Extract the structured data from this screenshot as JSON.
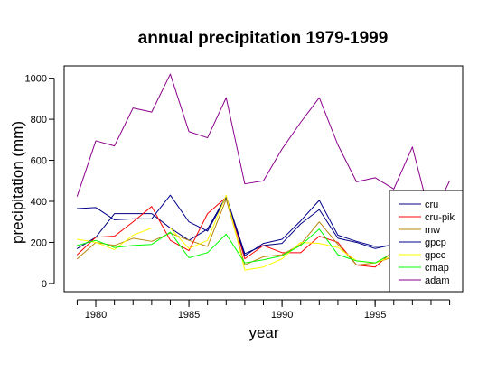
{
  "chart_data": {
    "type": "line",
    "title": "annual precipitation 1979-1999",
    "xlabel": "year",
    "ylabel": "precipitation (mm)",
    "x": [
      1979,
      1980,
      1981,
      1982,
      1983,
      1984,
      1985,
      1986,
      1987,
      1988,
      1989,
      1990,
      1991,
      1992,
      1993,
      1994,
      1995,
      1996,
      1997,
      1998,
      1999
    ],
    "xlim": [
      1978.3,
      1999.7
    ],
    "ylim": [
      -40,
      1060
    ],
    "xticks": [
      1980,
      1985,
      1990,
      1995
    ],
    "yticks": [
      0,
      200,
      400,
      600,
      800,
      1000
    ],
    "grid": false,
    "legend_position": "bottom-right",
    "series": [
      {
        "name": "cru",
        "color": "#000080",
        "values": [
          170,
          225,
          340,
          340,
          340,
          270,
          210,
          265,
          425,
          145,
          185,
          195,
          290,
          360,
          220,
          200,
          170,
          190,
          null,
          null,
          null
        ]
      },
      {
        "name": "cru-pik",
        "color": "#ff0000",
        "values": [
          140,
          225,
          230,
          300,
          375,
          210,
          160,
          340,
          420,
          120,
          185,
          150,
          150,
          230,
          200,
          90,
          80,
          160,
          null,
          null,
          null
        ]
      },
      {
        "name": "mw",
        "color": "#b8860b",
        "values": [
          120,
          200,
          185,
          220,
          205,
          245,
          210,
          180,
          410,
          90,
          130,
          140,
          190,
          300,
          190,
          90,
          100,
          130,
          null,
          null,
          null
        ]
      },
      {
        "name": "gpcp",
        "color": "#00008b",
        "values": [
          365,
          370,
          310,
          315,
          315,
          430,
          300,
          255,
          420,
          135,
          195,
          215,
          305,
          405,
          235,
          205,
          180,
          185,
          null,
          null,
          null
        ]
      },
      {
        "name": "gpcc",
        "color": "#ffff00",
        "values": [
          215,
          200,
          165,
          235,
          270,
          270,
          170,
          210,
          430,
          65,
          80,
          120,
          200,
          195,
          175,
          110,
          100,
          135,
          null,
          null,
          null
        ]
      },
      {
        "name": "cmap",
        "color": "#00ff00",
        "values": [
          185,
          210,
          175,
          185,
          190,
          250,
          125,
          150,
          240,
          100,
          115,
          135,
          185,
          265,
          140,
          110,
          100,
          150,
          null,
          null,
          null
        ]
      },
      {
        "name": "adam",
        "color": "#8b008b",
        "values": [
          425,
          695,
          670,
          855,
          835,
          1020,
          740,
          710,
          905,
          485,
          500,
          655,
          785,
          905,
          675,
          495,
          515,
          460,
          665,
          310,
          500
        ]
      }
    ]
  }
}
